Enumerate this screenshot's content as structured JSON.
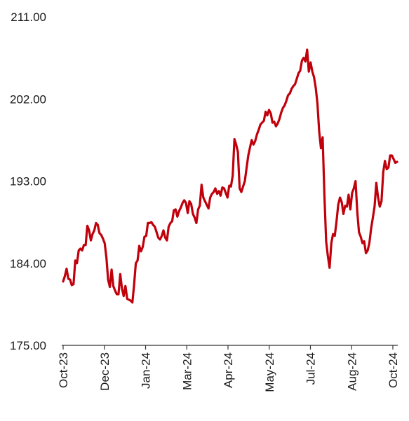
{
  "chart_data": {
    "type": "line",
    "title": "",
    "xlabel": "",
    "ylabel": "",
    "ylim": [
      175,
      211
    ],
    "y_ticks": [
      "175.00",
      "184.00",
      "193.00",
      "202.00",
      "211.00"
    ],
    "x_ticks": [
      "Oct-23",
      "Dec-23",
      "Jan-24",
      "Mar-24",
      "Apr-24",
      "May-24",
      "Jul-24",
      "Aug-24",
      "Oct-24"
    ],
    "grid": false,
    "legend": "none",
    "line_color": "#c0000b",
    "series": [
      {
        "values": [
          182.0,
          182.6,
          183.4,
          182.3,
          182.2,
          181.6,
          181.7,
          184.3,
          184.0,
          185.4,
          185.6,
          185.4,
          186.0,
          186.0,
          188.1,
          187.6,
          186.5,
          187.2,
          187.6,
          188.4,
          188.2,
          187.3,
          187.1,
          186.7,
          186.2,
          184.6,
          182.2,
          181.4,
          183.3,
          181.5,
          181.0,
          180.6,
          180.6,
          182.8,
          181.2,
          180.4,
          181.5,
          180.1,
          180.0,
          179.9,
          179.7,
          181.6,
          184.0,
          184.3,
          185.9,
          185.3,
          185.8,
          186.9,
          187.0,
          188.4,
          188.4,
          188.5,
          188.2,
          188.0,
          187.4,
          186.8,
          186.6,
          187.0,
          187.6,
          186.8,
          186.5,
          188.0,
          188.4,
          188.6,
          189.8,
          189.9,
          189.1,
          189.7,
          190.1,
          190.6,
          190.9,
          190.6,
          189.5,
          190.8,
          190.5,
          189.4,
          189.0,
          188.4,
          189.9,
          190.3,
          192.6,
          191.2,
          190.8,
          190.4,
          190.0,
          191.2,
          191.6,
          191.8,
          192.2,
          191.6,
          191.9,
          191.4,
          192.3,
          192.2,
          191.7,
          191.2,
          192.5,
          192.4,
          193.6,
          197.6,
          197.0,
          196.2,
          192.2,
          191.8,
          192.4,
          193.0,
          194.4,
          195.8,
          196.7,
          197.5,
          197.0,
          197.4,
          198.1,
          198.6,
          199.2,
          199.4,
          199.6,
          200.6,
          200.2,
          200.8,
          200.4,
          199.4,
          199.5,
          199.0,
          199.3,
          199.8,
          200.5,
          201.0,
          201.3,
          201.8,
          202.4,
          202.6,
          203.1,
          203.4,
          203.6,
          204.2,
          204.8,
          205.1,
          206.2,
          206.5,
          206.1,
          207.4,
          205.0,
          206.0,
          205.0,
          204.4,
          203.2,
          201.5,
          198.4,
          196.6,
          197.8,
          191.5,
          186.4,
          184.8,
          183.5,
          186.2,
          187.2,
          187.0,
          188.6,
          190.4,
          191.2,
          190.7,
          189.4,
          190.3,
          190.2,
          191.5,
          189.9,
          191.7,
          192.2,
          193.0,
          189.6,
          187.4,
          186.9,
          186.2,
          186.4,
          185.1,
          185.4,
          186.2,
          187.8,
          189.0,
          190.2,
          192.8,
          191.2,
          190.2,
          190.8,
          194.0,
          195.2,
          194.3,
          194.5,
          195.8,
          195.8,
          195.4,
          195.0,
          195.1
        ],
        "note_start": "Oct-23",
        "note_end": "Oct-24"
      }
    ]
  }
}
